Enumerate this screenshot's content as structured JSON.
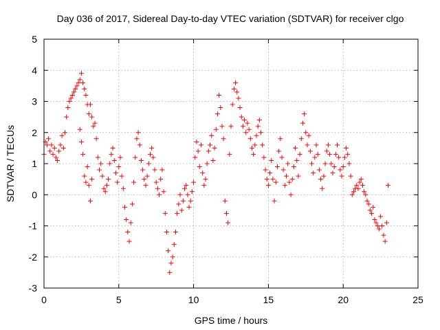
{
  "chart_data": {
    "type": "scatter",
    "title": "Day 036 of 2017, Sidereal Day-to-day VTEC variation (SDTVAR) for receiver clgo",
    "xlabel": "GPS time / hours",
    "ylabel": "SDTVAR / TECUs",
    "xlim": [
      0,
      25
    ],
    "ylim": [
      -3,
      5
    ],
    "xticks": [
      0,
      5,
      10,
      15,
      20,
      25
    ],
    "yticks": [
      -3,
      -2,
      -1,
      0,
      1,
      2,
      3,
      4,
      5
    ],
    "grid": true,
    "marker": "+",
    "color": "#ff0000",
    "series": [
      {
        "name": "SDTVAR",
        "points": [
          [
            0.0,
            1.3
          ],
          [
            0.1,
            1.7
          ],
          [
            0.2,
            1.6
          ],
          [
            0.3,
            1.8
          ],
          [
            0.4,
            1.4
          ],
          [
            0.5,
            1.6
          ],
          [
            0.6,
            1.3
          ],
          [
            0.7,
            1.5
          ],
          [
            0.8,
            1.2
          ],
          [
            0.9,
            1.1
          ],
          [
            1.0,
            1.4
          ],
          [
            1.1,
            1.6
          ],
          [
            1.2,
            1.9
          ],
          [
            1.3,
            1.5
          ],
          [
            1.4,
            2.0
          ],
          [
            1.5,
            2.5
          ],
          [
            1.6,
            2.8
          ],
          [
            1.7,
            3.0
          ],
          [
            1.8,
            3.1
          ],
          [
            1.9,
            3.2
          ],
          [
            2.0,
            3.3
          ],
          [
            2.1,
            3.4
          ],
          [
            2.2,
            3.5
          ],
          [
            2.3,
            3.6
          ],
          [
            2.4,
            3.7
          ],
          [
            2.5,
            3.9
          ],
          [
            2.6,
            3.6
          ],
          [
            2.7,
            3.4
          ],
          [
            2.8,
            3.2
          ],
          [
            2.9,
            2.9
          ],
          [
            2.4,
            2.1
          ],
          [
            2.5,
            1.7
          ],
          [
            2.6,
            1.3
          ],
          [
            2.7,
            0.6
          ],
          [
            2.8,
            0.4
          ],
          [
            2.9,
            0.9
          ],
          [
            3.0,
            0.3
          ],
          [
            3.1,
            -0.2
          ],
          [
            3.2,
            0.5
          ],
          [
            3.0,
            2.6
          ],
          [
            3.1,
            2.9
          ],
          [
            3.2,
            2.5
          ],
          [
            3.3,
            2.2
          ],
          [
            3.4,
            2.3
          ],
          [
            3.5,
            1.8
          ],
          [
            3.6,
            1.2
          ],
          [
            3.7,
            0.8
          ],
          [
            3.8,
            1.0
          ],
          [
            3.9,
            0.6
          ],
          [
            4.0,
            0.2
          ],
          [
            4.1,
            0.1
          ],
          [
            4.2,
            0.3
          ],
          [
            4.3,
            0.5
          ],
          [
            4.4,
            1.0
          ],
          [
            4.5,
            1.3
          ],
          [
            4.6,
            1.5
          ],
          [
            4.7,
            1.1
          ],
          [
            4.8,
            0.7
          ],
          [
            4.9,
            0.4
          ],
          [
            5.0,
            0.9
          ],
          [
            5.1,
            1.2
          ],
          [
            5.2,
            0.6
          ],
          [
            5.3,
            0.2
          ],
          [
            5.4,
            -0.4
          ],
          [
            5.5,
            -0.8
          ],
          [
            5.6,
            -1.2
          ],
          [
            5.7,
            -1.5
          ],
          [
            5.8,
            -0.9
          ],
          [
            5.9,
            -0.3
          ],
          [
            6.0,
            0.4
          ],
          [
            6.1,
            1.2
          ],
          [
            6.2,
            1.8
          ],
          [
            6.3,
            2.0
          ],
          [
            6.4,
            1.6
          ],
          [
            6.5,
            1.1
          ],
          [
            6.6,
            0.8
          ],
          [
            6.7,
            0.5
          ],
          [
            6.8,
            0.3
          ],
          [
            6.9,
            0.6
          ],
          [
            7.0,
            1.0
          ],
          [
            7.1,
            1.3
          ],
          [
            7.2,
            1.5
          ],
          [
            7.3,
            1.2
          ],
          [
            7.4,
            0.8
          ],
          [
            7.5,
            0.4
          ],
          [
            7.6,
            0.2
          ],
          [
            7.7,
            0.0
          ],
          [
            7.8,
            0.5
          ],
          [
            7.9,
            0.8
          ],
          [
            8.0,
            0.1
          ],
          [
            8.1,
            -0.6
          ],
          [
            8.2,
            -1.2
          ],
          [
            8.3,
            -1.8
          ],
          [
            8.4,
            -2.5
          ],
          [
            8.5,
            -2.2
          ],
          [
            8.6,
            -2.0
          ],
          [
            8.7,
            -1.6
          ],
          [
            8.8,
            -1.2
          ],
          [
            8.9,
            -0.6
          ],
          [
            9.0,
            -0.3
          ],
          [
            9.1,
            0.0
          ],
          [
            9.2,
            -0.5
          ],
          [
            9.3,
            -0.2
          ],
          [
            9.4,
            0.2
          ],
          [
            9.5,
            0.3
          ],
          [
            9.6,
            0.0
          ],
          [
            9.7,
            -0.4
          ],
          [
            9.8,
            -0.2
          ],
          [
            9.9,
            0.1
          ],
          [
            10.0,
            0.4
          ],
          [
            10.1,
            1.2
          ],
          [
            10.2,
            1.7
          ],
          [
            10.3,
            1.4
          ],
          [
            10.4,
            0.9
          ],
          [
            10.5,
            1.6
          ],
          [
            10.6,
            0.7
          ],
          [
            10.7,
            0.3
          ],
          [
            10.8,
            0.5
          ],
          [
            10.9,
            1.0
          ],
          [
            11.0,
            1.4
          ],
          [
            11.1,
            1.6
          ],
          [
            11.2,
            1.9
          ],
          [
            11.3,
            1.1
          ],
          [
            11.4,
            1.5
          ],
          [
            11.5,
            2.1
          ],
          [
            11.6,
            2.6
          ],
          [
            11.7,
            3.2
          ],
          [
            11.8,
            2.8
          ],
          [
            11.9,
            2.2
          ],
          [
            12.0,
            1.8
          ],
          [
            12.1,
            -0.2
          ],
          [
            12.2,
            -0.6
          ],
          [
            12.3,
            -0.9
          ],
          [
            12.4,
            1.3
          ],
          [
            12.5,
            2.2
          ],
          [
            12.6,
            2.9
          ],
          [
            12.7,
            3.4
          ],
          [
            12.8,
            3.6
          ],
          [
            12.9,
            3.3
          ],
          [
            13.0,
            3.1
          ],
          [
            13.1,
            2.8
          ],
          [
            13.2,
            2.5
          ],
          [
            13.3,
            2.2
          ],
          [
            13.4,
            2.4
          ],
          [
            13.5,
            2.0
          ],
          [
            13.6,
            2.3
          ],
          [
            13.7,
            2.1
          ],
          [
            13.8,
            1.8
          ],
          [
            13.9,
            1.5
          ],
          [
            14.0,
            1.3
          ],
          [
            14.1,
            1.6
          ],
          [
            14.2,
            1.9
          ],
          [
            14.3,
            2.2
          ],
          [
            14.4,
            2.4
          ],
          [
            14.5,
            2.0
          ],
          [
            14.6,
            1.6
          ],
          [
            14.7,
            1.2
          ],
          [
            14.8,
            0.8
          ],
          [
            14.9,
            0.5
          ],
          [
            15.0,
            0.3
          ],
          [
            15.1,
            0.7
          ],
          [
            15.2,
            1.1
          ],
          [
            15.3,
            0.5
          ],
          [
            15.4,
            -0.2
          ],
          [
            15.5,
            0.4
          ],
          [
            15.6,
            0.9
          ],
          [
            15.7,
            1.4
          ],
          [
            15.8,
            1.8
          ],
          [
            15.9,
            1.2
          ],
          [
            16.0,
            0.8
          ],
          [
            16.1,
            0.3
          ],
          [
            16.2,
            0.6
          ],
          [
            16.3,
            1.0
          ],
          [
            16.4,
            0.4
          ],
          [
            16.5,
            0.0
          ],
          [
            16.6,
            0.5
          ],
          [
            16.7,
            0.9
          ],
          [
            16.8,
            1.5
          ],
          [
            16.9,
            1.1
          ],
          [
            17.0,
            0.6
          ],
          [
            17.1,
            1.3
          ],
          [
            17.2,
            1.8
          ],
          [
            17.3,
            2.3
          ],
          [
            17.4,
            2.6
          ],
          [
            17.5,
            2.0
          ],
          [
            17.6,
            1.6
          ],
          [
            17.7,
            1.9
          ],
          [
            17.8,
            1.4
          ],
          [
            17.9,
            1.0
          ],
          [
            18.0,
            0.7
          ],
          [
            18.1,
            1.2
          ],
          [
            18.2,
            1.6
          ],
          [
            18.3,
            1.3
          ],
          [
            18.4,
            0.8
          ],
          [
            18.5,
            0.5
          ],
          [
            18.6,
            0.2
          ],
          [
            18.7,
            0.6
          ],
          [
            18.8,
            1.0
          ],
          [
            18.9,
            1.4
          ],
          [
            19.0,
            1.6
          ],
          [
            19.1,
            1.3
          ],
          [
            19.2,
            1.0
          ],
          [
            19.3,
            0.7
          ],
          [
            19.4,
            0.9
          ],
          [
            19.5,
            1.3
          ],
          [
            19.6,
            1.6
          ],
          [
            19.7,
            1.2
          ],
          [
            19.8,
            0.8
          ],
          [
            19.9,
            0.6
          ],
          [
            20.0,
            0.9
          ],
          [
            20.1,
            1.2
          ],
          [
            20.2,
            1.5
          ],
          [
            20.3,
            1.3
          ],
          [
            20.4,
            1.0
          ],
          [
            20.5,
            0.6
          ],
          [
            20.6,
            0.0
          ],
          [
            20.7,
            0.1
          ],
          [
            20.8,
            0.2
          ],
          [
            20.9,
            0.3
          ],
          [
            21.0,
            0.2
          ],
          [
            21.1,
            0.4
          ],
          [
            21.2,
            0.5
          ],
          [
            21.3,
            0.3
          ],
          [
            21.4,
            0.1
          ],
          [
            21.5,
            0.0
          ],
          [
            21.6,
            -0.2
          ],
          [
            21.7,
            -0.3
          ],
          [
            21.8,
            -0.5
          ],
          [
            21.9,
            -0.6
          ],
          [
            22.0,
            -0.4
          ],
          [
            22.1,
            -0.8
          ],
          [
            22.2,
            -0.9
          ],
          [
            22.3,
            -1.0
          ],
          [
            22.4,
            -1.1
          ],
          [
            22.5,
            -0.7
          ],
          [
            22.6,
            -1.0
          ],
          [
            22.7,
            -1.3
          ],
          [
            22.8,
            -1.5
          ],
          [
            22.9,
            -0.9
          ],
          [
            23.0,
            0.3
          ]
        ]
      }
    ]
  }
}
